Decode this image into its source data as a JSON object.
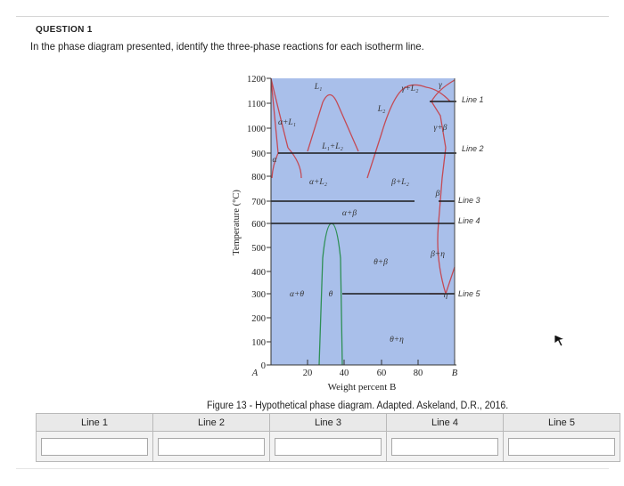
{
  "question": {
    "header": "QUESTION 1",
    "text": "In the phase diagram presented, identify the three-phase reactions for each isotherm line."
  },
  "figure": {
    "caption": "Figure 13 - Hypothetical phase diagram. Adapted. Askeland, D.R., 2016."
  },
  "chart_data": {
    "type": "phase-diagram",
    "ylabel": "Temperature (°C)",
    "xlabel": "Weight percent B",
    "y_ticks": [
      "1200",
      "1100",
      "1000",
      "900",
      "800",
      "700",
      "600",
      "500",
      "400",
      "300",
      "200",
      "100",
      "0"
    ],
    "x_ticks": [
      "A",
      "20",
      "40",
      "60",
      "80",
      "B"
    ],
    "ylim": [
      0,
      1200
    ],
    "xlim": [
      0,
      100
    ],
    "regions": {
      "L1": "L₁",
      "L2": "L₂",
      "gamma_L2": "γ+L₂",
      "gamma": "γ",
      "alpha_L1": "α+L₁",
      "L1_L2": "L₁+L₂",
      "gamma_beta": "γ+β",
      "alpha": "α",
      "alpha_L2": "α+L₂",
      "beta_L2": "β+L₂",
      "beta": "β",
      "alpha_beta": "α+β",
      "theta_beta": "θ+β",
      "beta_eta": "β+η",
      "alpha_theta": "α+θ",
      "theta": "θ",
      "eta": "η",
      "theta_eta": "θ+η"
    },
    "isotherms": [
      {
        "label": "Line 1",
        "temperature": 1100
      },
      {
        "label": "Line 2",
        "temperature": 890
      },
      {
        "label": "Line 3",
        "temperature": 700
      },
      {
        "label": "Line 4",
        "temperature": 610
      },
      {
        "label": "Line 5",
        "temperature": 300
      }
    ]
  },
  "table": {
    "headers": [
      "Line 1",
      "Line 2",
      "Line 3",
      "Line 4",
      "Line 5"
    ],
    "values": [
      "",
      "",
      "",
      "",
      ""
    ]
  }
}
